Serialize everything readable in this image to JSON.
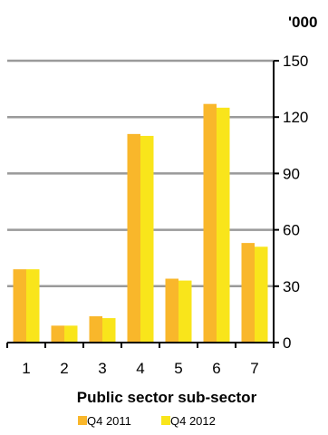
{
  "chart_data": {
    "type": "bar",
    "title": "",
    "xlabel": "Public sector sub-sector",
    "ylabel": "",
    "unit_label": "'000",
    "categories": [
      "1",
      "2",
      "3",
      "4",
      "5",
      "6",
      "7"
    ],
    "series": [
      {
        "name": "Q4 2011",
        "color": "#f9b72b",
        "values": [
          39,
          9,
          14,
          111,
          34,
          127,
          53
        ]
      },
      {
        "name": "Q4 2012",
        "color": "#f9e51b",
        "values": [
          39,
          9,
          13,
          110,
          33,
          125,
          51
        ]
      }
    ],
    "ylim": [
      0,
      150
    ],
    "yticks": [
      "0",
      "30",
      "60",
      "90",
      "120",
      "150"
    ],
    "grid": true,
    "y_axis_side": "right",
    "legend": "bottom-center"
  }
}
